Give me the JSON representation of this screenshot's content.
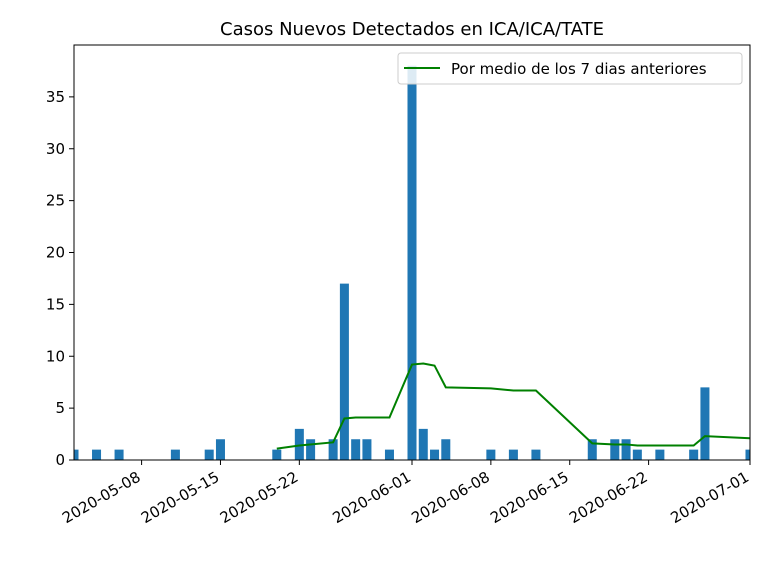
{
  "chart_data": {
    "type": "bar",
    "title": "Casos Nuevos Detectados en ICA/ICA/TATE",
    "xlabel": "",
    "ylabel": "",
    "x_range": [
      "2020-05-02",
      "2020-07-01"
    ],
    "ylim": [
      0,
      40
    ],
    "grid": false,
    "legend_position": "top-right",
    "bar_color": "#1f77b4",
    "line_color": "#008000",
    "x_ticks": [
      "2020-05-08",
      "2020-05-15",
      "2020-05-22",
      "2020-06-01",
      "2020-06-08",
      "2020-06-15",
      "2020-06-22",
      "2020-07-01"
    ],
    "y_ticks": [
      0,
      5,
      10,
      15,
      20,
      25,
      30,
      35
    ],
    "bars": [
      {
        "date": "2020-05-02",
        "value": 1
      },
      {
        "date": "2020-05-04",
        "value": 1
      },
      {
        "date": "2020-05-06",
        "value": 1
      },
      {
        "date": "2020-05-11",
        "value": 1
      },
      {
        "date": "2020-05-14",
        "value": 1
      },
      {
        "date": "2020-05-15",
        "value": 2
      },
      {
        "date": "2020-05-20",
        "value": 1
      },
      {
        "date": "2020-05-22",
        "value": 3
      },
      {
        "date": "2020-05-23",
        "value": 2
      },
      {
        "date": "2020-05-25",
        "value": 2
      },
      {
        "date": "2020-05-26",
        "value": 17
      },
      {
        "date": "2020-05-27",
        "value": 2
      },
      {
        "date": "2020-05-28",
        "value": 2
      },
      {
        "date": "2020-05-30",
        "value": 1
      },
      {
        "date": "2020-06-01",
        "value": 38
      },
      {
        "date": "2020-06-02",
        "value": 3
      },
      {
        "date": "2020-06-03",
        "value": 1
      },
      {
        "date": "2020-06-04",
        "value": 2
      },
      {
        "date": "2020-06-08",
        "value": 1
      },
      {
        "date": "2020-06-10",
        "value": 1
      },
      {
        "date": "2020-06-12",
        "value": 1
      },
      {
        "date": "2020-06-17",
        "value": 2
      },
      {
        "date": "2020-06-19",
        "value": 2
      },
      {
        "date": "2020-06-20",
        "value": 2
      },
      {
        "date": "2020-06-21",
        "value": 1
      },
      {
        "date": "2020-06-23",
        "value": 1
      },
      {
        "date": "2020-06-26",
        "value": 1
      },
      {
        "date": "2020-06-27",
        "value": 7
      },
      {
        "date": "2020-07-01",
        "value": 1
      }
    ],
    "series": [
      {
        "name": "Por medio de los 7 dias anteriores",
        "points": [
          {
            "date": "2020-05-20",
            "value": 1.1
          },
          {
            "date": "2020-05-22",
            "value": 1.4
          },
          {
            "date": "2020-05-25",
            "value": 1.7
          },
          {
            "date": "2020-05-26",
            "value": 4.0
          },
          {
            "date": "2020-05-27",
            "value": 4.1
          },
          {
            "date": "2020-05-30",
            "value": 4.1
          },
          {
            "date": "2020-06-01",
            "value": 9.2
          },
          {
            "date": "2020-06-02",
            "value": 9.3
          },
          {
            "date": "2020-06-03",
            "value": 9.1
          },
          {
            "date": "2020-06-04",
            "value": 7.0
          },
          {
            "date": "2020-06-08",
            "value": 6.9
          },
          {
            "date": "2020-06-10",
            "value": 6.7
          },
          {
            "date": "2020-06-12",
            "value": 6.7
          },
          {
            "date": "2020-06-17",
            "value": 1.6
          },
          {
            "date": "2020-06-19",
            "value": 1.5
          },
          {
            "date": "2020-06-20",
            "value": 1.5
          },
          {
            "date": "2020-06-21",
            "value": 1.4
          },
          {
            "date": "2020-06-26",
            "value": 1.4
          },
          {
            "date": "2020-06-27",
            "value": 2.3
          },
          {
            "date": "2020-07-01",
            "value": 2.1
          }
        ]
      }
    ]
  }
}
